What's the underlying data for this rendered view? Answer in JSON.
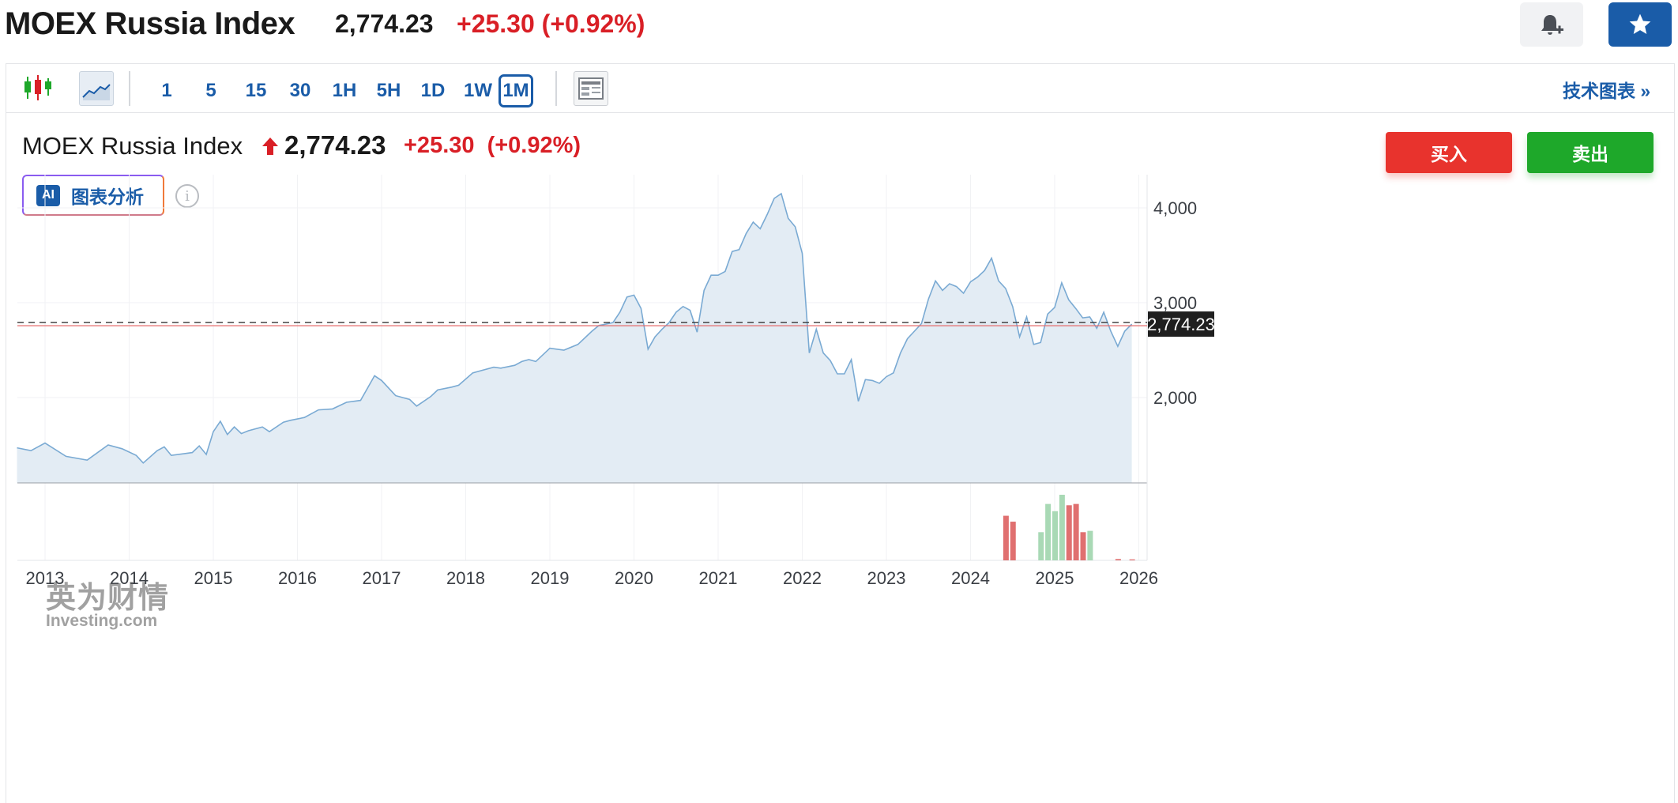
{
  "header": {
    "title": "MOEX Russia Index",
    "price": "2,774.23",
    "change": "+25.30 (+0.92%)"
  },
  "toolbar": {
    "intervals": [
      "1",
      "5",
      "15",
      "30",
      "1H",
      "5H",
      "1D",
      "1W",
      "1M"
    ],
    "active_interval": "1M",
    "tech_chart_label": "技术图表 »"
  },
  "info": {
    "name": "MOEX Russia Index",
    "price": "2,774.23",
    "change": "+25.30",
    "change_pct": "(+0.92%)",
    "buy_label": "买入",
    "sell_label": "卖出",
    "ai_label": "图表分析",
    "ai_badge": "AI",
    "info_icon": "i"
  },
  "watermark": {
    "cn": "英为财情",
    "en": "Investing.com"
  },
  "colors": {
    "up": "#d91f26",
    "brand": "#1a5ca8",
    "buy": "#e8332d",
    "sell": "#1ea82a",
    "line": "#7aaad3",
    "area": "#e3ecf4"
  },
  "chart_data": {
    "type": "area",
    "x_range": [
      "2012-09",
      "2025-12"
    ],
    "y_range": [
      1100,
      4350
    ],
    "x_tick_labels": [
      "2013",
      "2014",
      "2015",
      "2016",
      "2017",
      "2018",
      "2019",
      "2020",
      "2021",
      "2022",
      "2023",
      "2024",
      "2025",
      "2026"
    ],
    "y_tick_values": [
      2000,
      3000,
      4000
    ],
    "y_tick_labels": [
      "2,000",
      "3,000",
      "4,000"
    ],
    "last_price_label": "2,774.23",
    "last_price": 2774.23,
    "grid": true,
    "series": [
      {
        "points": [
          [
            "2012-09",
            1470
          ],
          [
            "2012-11",
            1440
          ],
          [
            "2013-01",
            1520
          ],
          [
            "2013-04",
            1380
          ],
          [
            "2013-07",
            1340
          ],
          [
            "2013-10",
            1500
          ],
          [
            "2013-12",
            1460
          ],
          [
            "2014-02",
            1390
          ],
          [
            "2014-03",
            1310
          ],
          [
            "2014-05",
            1440
          ],
          [
            "2014-06",
            1480
          ],
          [
            "2014-07",
            1390
          ],
          [
            "2014-09",
            1410
          ],
          [
            "2014-10",
            1420
          ],
          [
            "2014-11",
            1490
          ],
          [
            "2014-12",
            1400
          ],
          [
            "2015-01",
            1640
          ],
          [
            "2015-02",
            1750
          ],
          [
            "2015-03",
            1610
          ],
          [
            "2015-04",
            1690
          ],
          [
            "2015-05",
            1620
          ],
          [
            "2015-06",
            1650
          ],
          [
            "2015-08",
            1690
          ],
          [
            "2015-09",
            1640
          ],
          [
            "2015-11",
            1740
          ],
          [
            "2015-12",
            1760
          ],
          [
            "2016-02",
            1790
          ],
          [
            "2016-04",
            1870
          ],
          [
            "2016-06",
            1880
          ],
          [
            "2016-08",
            1950
          ],
          [
            "2016-10",
            1970
          ],
          [
            "2016-12",
            2230
          ],
          [
            "2017-01",
            2180
          ],
          [
            "2017-03",
            2020
          ],
          [
            "2017-05",
            1980
          ],
          [
            "2017-06",
            1910
          ],
          [
            "2017-08",
            2010
          ],
          [
            "2017-09",
            2080
          ],
          [
            "2017-11",
            2110
          ],
          [
            "2017-12",
            2130
          ],
          [
            "2018-02",
            2260
          ],
          [
            "2018-03",
            2280
          ],
          [
            "2018-05",
            2320
          ],
          [
            "2018-06",
            2310
          ],
          [
            "2018-08",
            2340
          ],
          [
            "2018-09",
            2380
          ],
          [
            "2018-10",
            2400
          ],
          [
            "2018-11",
            2380
          ],
          [
            "2019-01",
            2520
          ],
          [
            "2019-03",
            2500
          ],
          [
            "2019-05",
            2560
          ],
          [
            "2019-07",
            2700
          ],
          [
            "2019-08",
            2760
          ],
          [
            "2019-10",
            2790
          ],
          [
            "2019-11",
            2900
          ],
          [
            "2019-12",
            3060
          ],
          [
            "2020-01",
            3080
          ],
          [
            "2020-02",
            2940
          ],
          [
            "2020-03",
            2510
          ],
          [
            "2020-04",
            2640
          ],
          [
            "2020-05",
            2720
          ],
          [
            "2020-06",
            2790
          ],
          [
            "2020-07",
            2900
          ],
          [
            "2020-08",
            2960
          ],
          [
            "2020-09",
            2920
          ],
          [
            "2020-10",
            2690
          ],
          [
            "2020-11",
            3130
          ],
          [
            "2020-12",
            3290
          ],
          [
            "2021-01",
            3290
          ],
          [
            "2021-02",
            3330
          ],
          [
            "2021-03",
            3540
          ],
          [
            "2021-04",
            3560
          ],
          [
            "2021-05",
            3730
          ],
          [
            "2021-06",
            3850
          ],
          [
            "2021-07",
            3780
          ],
          [
            "2021-08",
            3930
          ],
          [
            "2021-09",
            4100
          ],
          [
            "2021-10",
            4150
          ],
          [
            "2021-11",
            3890
          ],
          [
            "2021-12",
            3800
          ],
          [
            "2022-01",
            3520
          ],
          [
            "2022-02",
            2470
          ],
          [
            "2022-03",
            2720
          ],
          [
            "2022-04",
            2470
          ],
          [
            "2022-05",
            2390
          ],
          [
            "2022-06",
            2250
          ],
          [
            "2022-07",
            2250
          ],
          [
            "2022-08",
            2400
          ],
          [
            "2022-09",
            1960
          ],
          [
            "2022-10",
            2190
          ],
          [
            "2022-11",
            2180
          ],
          [
            "2022-12",
            2150
          ],
          [
            "2023-01",
            2220
          ],
          [
            "2023-02",
            2260
          ],
          [
            "2023-03",
            2470
          ],
          [
            "2023-04",
            2620
          ],
          [
            "2023-05",
            2700
          ],
          [
            "2023-06",
            2780
          ],
          [
            "2023-07",
            3040
          ],
          [
            "2023-08",
            3230
          ],
          [
            "2023-09",
            3130
          ],
          [
            "2023-10",
            3200
          ],
          [
            "2023-11",
            3170
          ],
          [
            "2023-12",
            3100
          ],
          [
            "2024-01",
            3220
          ],
          [
            "2024-02",
            3270
          ],
          [
            "2024-03",
            3340
          ],
          [
            "2024-04",
            3470
          ],
          [
            "2024-05",
            3230
          ],
          [
            "2024-06",
            3150
          ],
          [
            "2024-07",
            2960
          ],
          [
            "2024-08",
            2640
          ],
          [
            "2024-09",
            2850
          ],
          [
            "2024-10",
            2560
          ],
          [
            "2024-11",
            2580
          ],
          [
            "2024-12",
            2880
          ],
          [
            "2025-01",
            2950
          ],
          [
            "2025-02",
            3210
          ],
          [
            "2025-03",
            3030
          ],
          [
            "2025-04",
            2940
          ],
          [
            "2025-05",
            2840
          ],
          [
            "2025-06",
            2850
          ],
          [
            "2025-07",
            2730
          ],
          [
            "2025-08",
            2900
          ],
          [
            "2025-09",
            2700
          ],
          [
            "2025-10",
            2540
          ],
          [
            "2025-11",
            2700
          ],
          [
            "2025-12",
            2774
          ]
        ]
      }
    ],
    "volume": {
      "bars": [
        [
          "2024-06",
          0.68,
          "down"
        ],
        [
          "2024-07",
          0.59,
          "down"
        ],
        [
          "2024-11",
          0.43,
          "up"
        ],
        [
          "2024-12",
          0.86,
          "up"
        ],
        [
          "2025-01",
          0.75,
          "up"
        ],
        [
          "2025-02",
          1.0,
          "up"
        ],
        [
          "2025-03",
          0.84,
          "down"
        ],
        [
          "2025-04",
          0.86,
          "down"
        ],
        [
          "2025-05",
          0.43,
          "down"
        ],
        [
          "2025-06",
          0.45,
          "up"
        ],
        [
          "2025-10",
          0.02,
          "down"
        ],
        [
          "2025-12",
          0.015,
          "down"
        ]
      ]
    }
  }
}
